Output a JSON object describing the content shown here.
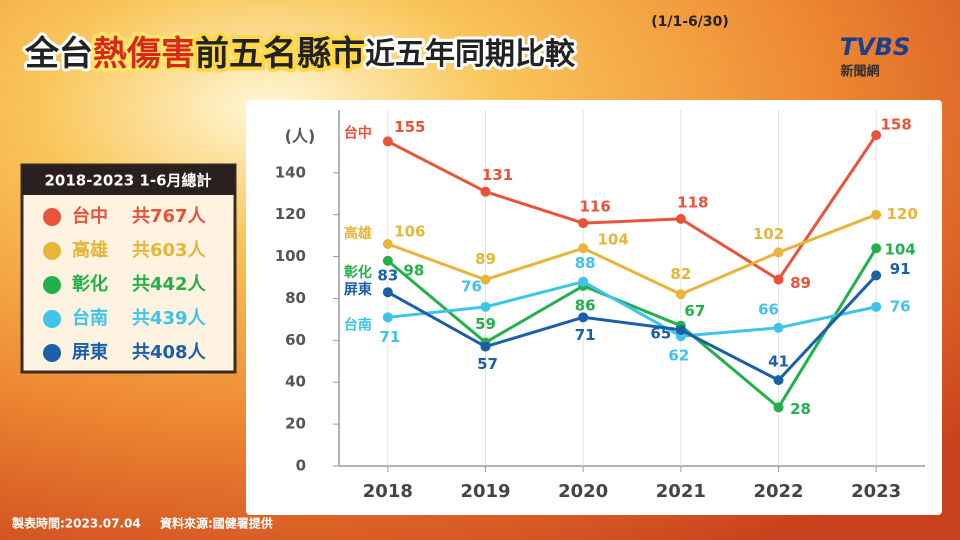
{
  "chart_data": {
    "type": "line",
    "title_parts": [
      "全台",
      "熱傷害",
      "前五名縣市",
      "近五年同期比較"
    ],
    "subtitle": "(1/1-6/30)",
    "logo": "TVBS",
    "logo_sub": "新聞網",
    "y_label": "(人)",
    "legend_title": "2018-2023 1-6月總計",
    "categories": [
      "2018",
      "2019",
      "2020",
      "2021",
      "2022",
      "2023"
    ],
    "series": [
      {
        "name": "台中",
        "color": "#e8533a",
        "total": "共767人",
        "values": [
          155,
          131,
          116,
          118,
          89,
          158
        ]
      },
      {
        "name": "高雄",
        "color": "#e6b53a",
        "total": "共603人",
        "values": [
          106,
          89,
          104,
          82,
          102,
          120
        ]
      },
      {
        "name": "彰化",
        "color": "#22b04a",
        "total": "共442人",
        "values": [
          98,
          59,
          86,
          67,
          28,
          104
        ]
      },
      {
        "name": "台南",
        "color": "#3ec4ea",
        "total": "共439人",
        "values": [
          71,
          76,
          88,
          62,
          66,
          76
        ]
      },
      {
        "name": "屏東",
        "color": "#1a5fa8",
        "total": "共408人",
        "values": [
          83,
          57,
          71,
          65,
          41,
          91
        ]
      }
    ],
    "ylim": [
      0,
      170
    ],
    "yticks": [
      0,
      20,
      40,
      60,
      80,
      100,
      120,
      140
    ],
    "footer": [
      "製表時間:2023.07.04",
      "資料來源:國健署提供"
    ]
  }
}
